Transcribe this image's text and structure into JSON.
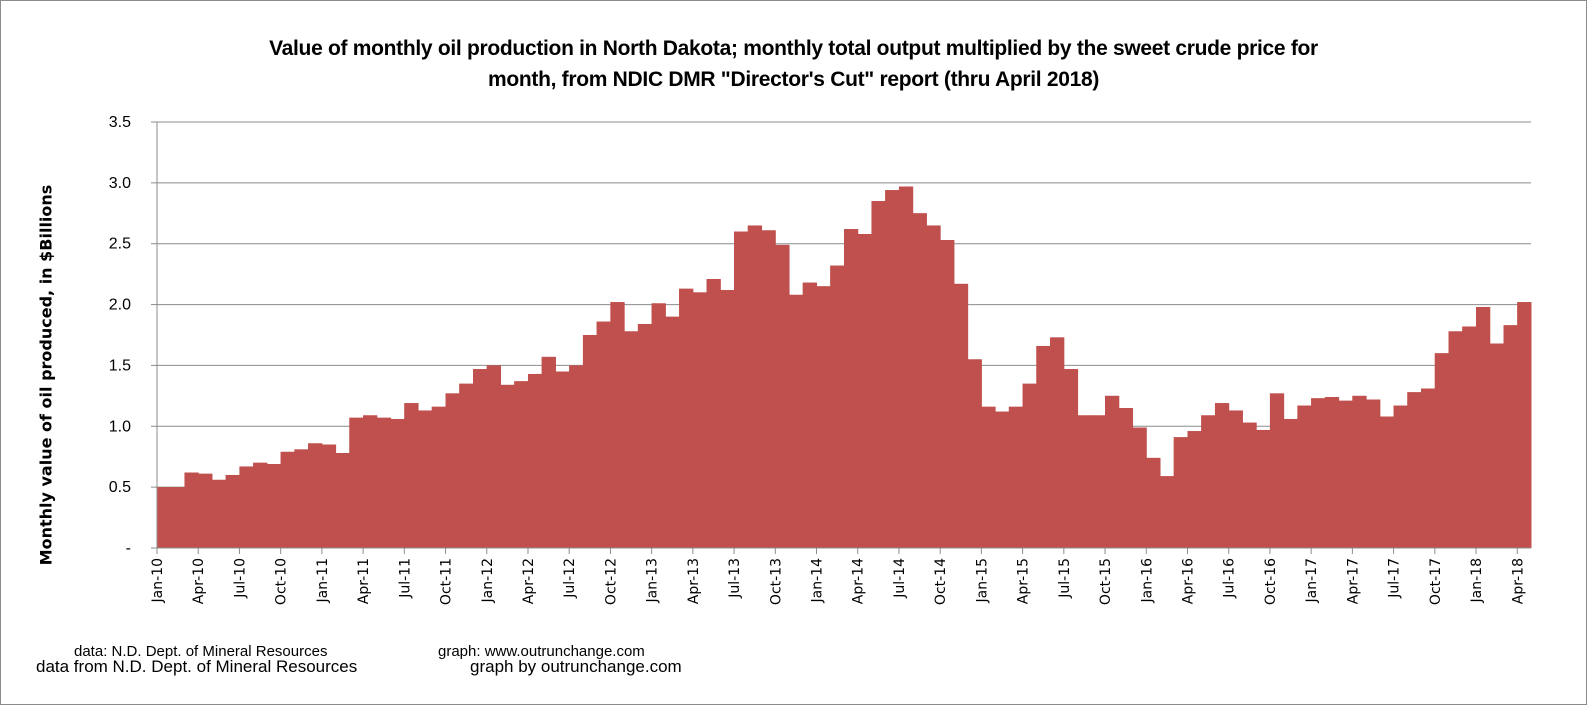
{
  "chart_data": {
    "type": "area",
    "title_line1": "Value of monthly oil production in North Dakota; monthly total output multiplied by the sweet crude price for",
    "title_line2": "month, from NDIC DMR \"Director's Cut\" report  (thru  April 2018)",
    "xlabel": "",
    "ylabel": "Monthly value of oil produced, in $Billions",
    "ylim": [
      0,
      3.5
    ],
    "y_ticks": [
      {
        "value": 0,
        "label": "-"
      },
      {
        "value": 0.5,
        "label": "0.5"
      },
      {
        "value": 1.0,
        "label": "1.0"
      },
      {
        "value": 1.5,
        "label": "1.5"
      },
      {
        "value": 2.0,
        "label": "2.0"
      },
      {
        "value": 2.5,
        "label": "2.5"
      },
      {
        "value": 3.0,
        "label": "3.0"
      },
      {
        "value": 3.5,
        "label": "3.5"
      }
    ],
    "grid": true,
    "x_tick_labels": [
      "Jan-10",
      "Apr-10",
      "Jul-10",
      "Oct-10",
      "Jan-11",
      "Apr-11",
      "Jul-11",
      "Oct-11",
      "Jan-12",
      "Apr-12",
      "Jul-12",
      "Oct-12",
      "Jan-13",
      "Apr-13",
      "Jul-13",
      "Oct-13",
      "Jan-14",
      "Apr-14",
      "Jul-14",
      "Oct-14",
      "Jan-15",
      "Apr-15",
      "Jul-15",
      "Oct-15",
      "Jan-16",
      "Apr-16",
      "Jul-16",
      "Oct-16",
      "Jan-17",
      "Apr-17",
      "Jul-17",
      "Oct-17",
      "Jan-18",
      "Apr-18"
    ],
    "x_start": "Jan-10",
    "color": "#C0504D",
    "series": [
      {
        "name": "Monthly value of oil produced ($Billions)",
        "values": [
          0.5,
          0.5,
          0.62,
          0.61,
          0.56,
          0.6,
          0.67,
          0.7,
          0.69,
          0.79,
          0.81,
          0.86,
          0.85,
          0.78,
          1.07,
          1.09,
          1.07,
          1.06,
          1.19,
          1.13,
          1.16,
          1.27,
          1.35,
          1.47,
          1.5,
          1.34,
          1.37,
          1.43,
          1.57,
          1.45,
          1.5,
          1.75,
          1.86,
          2.02,
          1.78,
          1.84,
          2.01,
          1.9,
          2.13,
          2.1,
          2.21,
          2.12,
          2.6,
          2.65,
          2.61,
          2.49,
          2.08,
          2.18,
          2.15,
          2.32,
          2.62,
          2.58,
          2.85,
          2.94,
          2.97,
          2.75,
          2.65,
          2.53,
          2.17,
          1.55,
          1.16,
          1.12,
          1.16,
          1.35,
          1.66,
          1.73,
          1.47,
          1.09,
          1.09,
          1.25,
          1.15,
          0.99,
          0.74,
          0.59,
          0.91,
          0.96,
          1.09,
          1.19,
          1.13,
          1.03,
          0.97,
          1.27,
          1.06,
          1.17,
          1.23,
          1.24,
          1.21,
          1.25,
          1.22,
          1.08,
          1.17,
          1.28,
          1.31,
          1.6,
          1.78,
          1.82,
          1.98,
          1.68,
          1.83,
          2.02
        ]
      }
    ]
  },
  "footer": {
    "line1_left": "data: N.D. Dept. of Mineral Resources",
    "line1_right": "graph:  www.outrunchange.com",
    "line2_left": "data from N.D. Dept. of Mineral Resources",
    "line2_right": "graph by outrunchange.com"
  }
}
